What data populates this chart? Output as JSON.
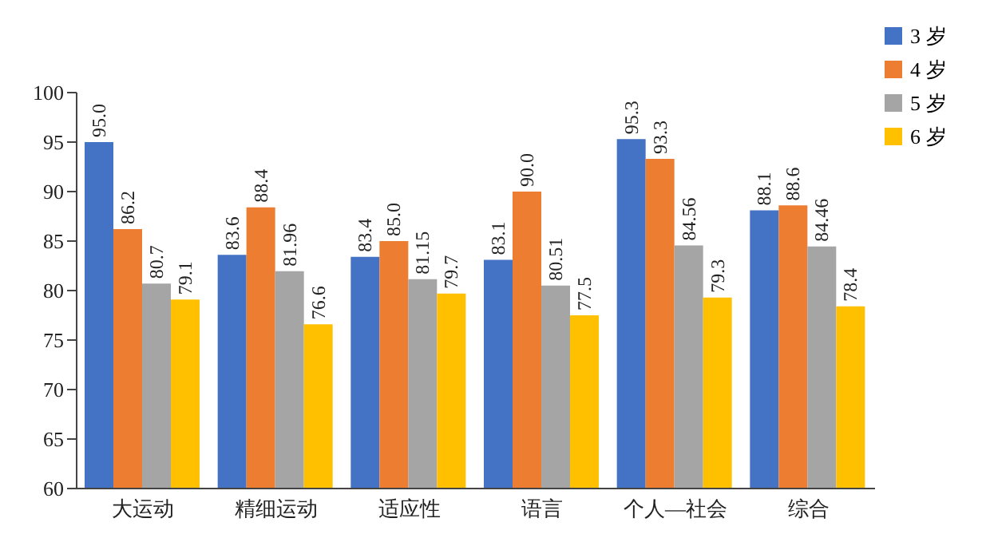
{
  "chart_data": {
    "type": "bar",
    "categories": [
      "大运动",
      "精细运动",
      "适应性",
      "语言",
      "个人—社会",
      "综合"
    ],
    "series": [
      {
        "name": "3 岁",
        "color": "#4472c4",
        "values": [
          95.0,
          83.6,
          83.4,
          83.1,
          95.3,
          88.1
        ],
        "value_labels": [
          "95.0",
          "83.6",
          "83.4",
          "83.1",
          "95.3",
          "88.1"
        ]
      },
      {
        "name": "4 岁",
        "color": "#ed7d31",
        "values": [
          86.2,
          88.4,
          85.0,
          90.0,
          93.3,
          88.6
        ],
        "value_labels": [
          "86.2",
          "88.4",
          "85.0",
          "90.0",
          "93.3",
          "88.6"
        ]
      },
      {
        "name": "5 岁",
        "color": "#a5a5a5",
        "values": [
          80.7,
          81.96,
          81.15,
          80.51,
          84.56,
          84.46
        ],
        "value_labels": [
          "80.7",
          "81.96",
          "81.15",
          "80.51",
          "84.56",
          "84.46"
        ]
      },
      {
        "name": "6 岁",
        "color": "#ffc000",
        "values": [
          79.1,
          76.6,
          79.7,
          77.5,
          79.3,
          78.4
        ],
        "value_labels": [
          "79.1",
          "76.6",
          "79.7",
          "77.5",
          "79.3",
          "78.4"
        ]
      }
    ],
    "ylim": [
      60,
      100
    ],
    "yticks": [
      60,
      65,
      70,
      75,
      80,
      85,
      90,
      95,
      100
    ],
    "legend": "top right"
  }
}
